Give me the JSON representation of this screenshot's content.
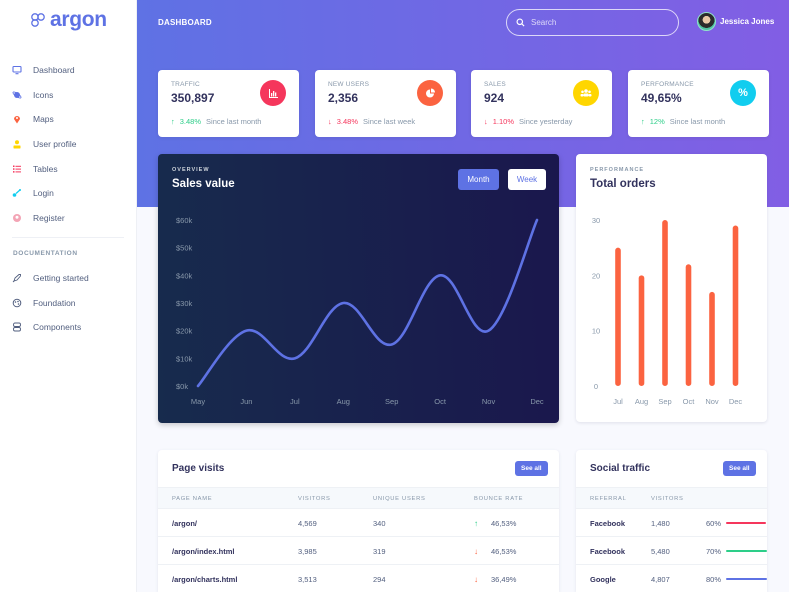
{
  "brand": {
    "name": "argon",
    "color": "#5e72e4"
  },
  "sidebar": {
    "items": [
      {
        "label": "Dashboard",
        "icon": "tv-icon",
        "color": "#5e72e4"
      },
      {
        "label": "Icons",
        "icon": "planet-icon",
        "color": "#5e72e4"
      },
      {
        "label": "Maps",
        "icon": "pin-icon",
        "color": "#fb6340"
      },
      {
        "label": "User profile",
        "icon": "user-icon",
        "color": "#ffd600"
      },
      {
        "label": "Tables",
        "icon": "list-icon",
        "color": "#f5365c"
      },
      {
        "label": "Login",
        "icon": "key-icon",
        "color": "#11cdef"
      },
      {
        "label": "Register",
        "icon": "circle-user-icon",
        "color": "#f3a4b5"
      }
    ],
    "doc_heading": "DOCUMENTATION",
    "doc_items": [
      {
        "label": "Getting started",
        "icon": "rocket-icon"
      },
      {
        "label": "Foundation",
        "icon": "palette-icon"
      },
      {
        "label": "Components",
        "icon": "components-icon"
      }
    ]
  },
  "header": {
    "title": "DASHBOARD",
    "search_placeholder": "Search",
    "user_name": "Jessica Jones"
  },
  "stats": [
    {
      "title": "TRAFFIC",
      "value": "350,897",
      "icon": "chart-bar-icon",
      "icon_color": "#f5365c",
      "change": "3.48%",
      "direction": "up",
      "since": "Since last month"
    },
    {
      "title": "NEW USERS",
      "value": "2,356",
      "icon": "chart-pie-icon",
      "icon_color": "#fb6340",
      "change": "3.48%",
      "direction": "down",
      "since": "Since last week"
    },
    {
      "title": "SALES",
      "value": "924",
      "icon": "users-icon",
      "icon_color": "#ffd600",
      "change": "1.10%",
      "direction": "down",
      "since": "Since yesterday"
    },
    {
      "title": "PERFORMANCE",
      "value": "49,65%",
      "icon": "percent-icon",
      "icon_color": "#11cdef",
      "change": "12%",
      "direction": "up",
      "since": "Since last month"
    }
  ],
  "sales_card": {
    "overline": "OVERVIEW",
    "title": "Sales value",
    "btn_month": "Month",
    "btn_week": "Week"
  },
  "orders_card": {
    "overline": "PERFORMANCE",
    "title": "Total orders"
  },
  "chart_data": [
    {
      "type": "line",
      "title": "Sales value",
      "categories": [
        "May",
        "Jun",
        "Jul",
        "Aug",
        "Sep",
        "Oct",
        "Nov",
        "Dec"
      ],
      "values": [
        0,
        20,
        10,
        30,
        15,
        40,
        20,
        60
      ],
      "yticks": [
        "$0k",
        "$10k",
        "$20k",
        "$30k",
        "$40k",
        "$50k",
        "$60k"
      ],
      "ylim": [
        0,
        60
      ],
      "ylabel": "",
      "xlabel": "",
      "grid": false,
      "color": "#5e72e4"
    },
    {
      "type": "bar",
      "title": "Total orders",
      "categories": [
        "Jul",
        "Aug",
        "Sep",
        "Oct",
        "Nov",
        "Dec"
      ],
      "values": [
        25,
        20,
        30,
        22,
        17,
        29
      ],
      "yticks": [
        "0",
        "10",
        "20",
        "30"
      ],
      "ylim": [
        0,
        30
      ],
      "ylabel": "",
      "xlabel": "",
      "grid": false,
      "color": "#fb6340"
    }
  ],
  "page_visits": {
    "title": "Page visits",
    "see_all": "See all",
    "columns": [
      "PAGE NAME",
      "VISITORS",
      "UNIQUE USERS",
      "BOUNCE RATE"
    ],
    "rows": [
      {
        "page": "/argon/",
        "visitors": "4,569",
        "unique": "340",
        "bounce": "46,53%",
        "direction": "up"
      },
      {
        "page": "/argon/index.html",
        "visitors": "3,985",
        "unique": "319",
        "bounce": "46,53%",
        "direction": "down"
      },
      {
        "page": "/argon/charts.html",
        "visitors": "3,513",
        "unique": "294",
        "bounce": "36,49%",
        "direction": "down"
      }
    ]
  },
  "social_traffic": {
    "title": "Social traffic",
    "see_all": "See all",
    "columns": [
      "REFERRAL",
      "VISITORS"
    ],
    "rows": [
      {
        "referral": "Facebook",
        "visitors": "1,480",
        "percent": "60%",
        "bar_color": "#f5365c"
      },
      {
        "referral": "Facebook",
        "visitors": "5,480",
        "percent": "70%",
        "bar_color": "#2dce89"
      },
      {
        "referral": "Google",
        "visitors": "4,807",
        "percent": "80%",
        "bar_color": "#5e72e4"
      }
    ]
  }
}
